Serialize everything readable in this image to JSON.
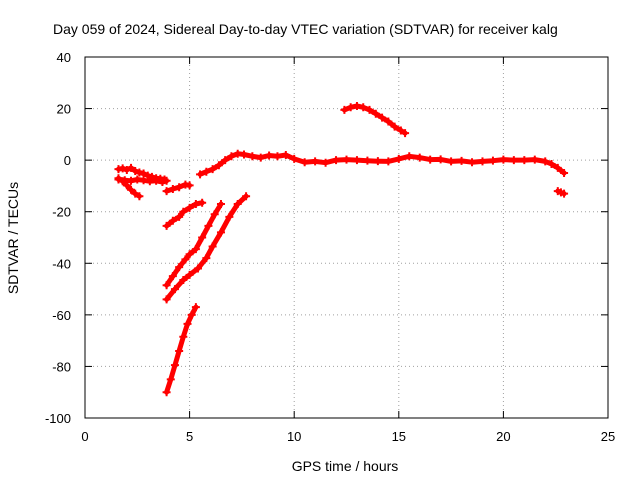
{
  "chart_data": {
    "type": "scatter",
    "title": "Day 059 of 2024, Sidereal Day-to-day VTEC variation (SDTVAR) for receiver kalg",
    "xlabel": "GPS time / hours",
    "ylabel": "SDTVAR / TECUs",
    "xlim": [
      0,
      25
    ],
    "ylim": [
      -100,
      40
    ],
    "x_ticks": [
      0,
      5,
      10,
      15,
      20,
      25
    ],
    "y_ticks": [
      -100,
      -80,
      -60,
      -40,
      -20,
      0,
      20,
      40
    ],
    "grid": true,
    "legend": "none",
    "series_color": "#ff0000",
    "series": [
      {
        "x": [
          1.6,
          1.8,
          2.0,
          2.2,
          2.4,
          2.6,
          2.8,
          3.0,
          3.2,
          3.4,
          3.6,
          3.8
        ],
        "y": [
          -3.5,
          -3.2,
          -3.8,
          -3.0,
          -4.2,
          -4.8,
          -5.2,
          -6.0,
          -6.5,
          -7.0,
          -7.2,
          -7.5
        ]
      },
      {
        "x": [
          1.6,
          1.9,
          2.2,
          2.5,
          2.8,
          3.1,
          3.4,
          3.7,
          3.9
        ],
        "y": [
          -7.5,
          -7.8,
          -8.0,
          -7.5,
          -7.8,
          -8.2,
          -8.0,
          -8.5,
          -8.0
        ]
      },
      {
        "x": [
          1.6,
          1.8,
          2.0,
          2.2,
          2.4,
          2.6
        ],
        "y": [
          -7.0,
          -8.2,
          -9.8,
          -11.5,
          -13.0,
          -14.0
        ]
      },
      {
        "x": [
          3.9,
          4.2,
          4.5,
          4.8,
          5.0
        ],
        "y": [
          -12.0,
          -11.2,
          -10.5,
          -9.5,
          -9.8
        ]
      },
      {
        "x": [
          3.9,
          4.2,
          4.5,
          4.7,
          5.0,
          5.3,
          5.6
        ],
        "y": [
          -25.5,
          -23.5,
          -22.0,
          -20.0,
          -18.5,
          -17.0,
          -16.5
        ]
      },
      {
        "x": [
          3.9,
          4.2,
          4.5,
          4.8,
          5.0,
          5.3,
          5.6,
          5.9,
          6.2,
          6.5
        ],
        "y": [
          -48.5,
          -45.0,
          -41.5,
          -38.5,
          -36.5,
          -34.5,
          -30.0,
          -25.5,
          -21.0,
          -17.0
        ]
      },
      {
        "x": [
          3.9,
          4.3,
          4.7,
          5.0,
          5.4,
          5.8,
          6.1,
          6.5,
          6.9,
          7.3,
          7.7
        ],
        "y": [
          -54.0,
          -50.0,
          -46.5,
          -44.5,
          -42.0,
          -38.0,
          -33.5,
          -28.0,
          -22.0,
          -17.0,
          -14.0
        ]
      },
      {
        "x": [
          3.9,
          4.1,
          4.3,
          4.5,
          4.7,
          4.9,
          5.1,
          5.3
        ],
        "y": [
          -90.0,
          -85.0,
          -79.5,
          -74.0,
          -68.5,
          -63.5,
          -60.0,
          -57.0
        ]
      },
      {
        "x": [
          5.5,
          5.8,
          6.1,
          6.4,
          6.7,
          7.0,
          7.3,
          7.6,
          8.0,
          8.4,
          8.8,
          9.2,
          9.6,
          10.0,
          10.5,
          11.0,
          11.5,
          12.0,
          12.5,
          13.0,
          13.5,
          14.0,
          14.5,
          15.0,
          15.5,
          16.0,
          16.5,
          17.0,
          17.5,
          18.0,
          18.5,
          19.0,
          19.5,
          20.0,
          20.5,
          21.0,
          21.5,
          22.0,
          22.3,
          22.6,
          22.9
        ],
        "y": [
          -5.5,
          -4.5,
          -3.5,
          -2.0,
          0.0,
          1.5,
          2.5,
          2.2,
          1.5,
          1.0,
          1.8,
          1.5,
          2.0,
          0.5,
          -0.8,
          -0.5,
          -1.0,
          0.0,
          0.2,
          0.0,
          -0.2,
          -0.4,
          -0.5,
          0.5,
          1.5,
          1.0,
          0.2,
          0.3,
          -0.5,
          -0.3,
          -0.8,
          -0.5,
          -0.2,
          0.2,
          0.0,
          0.0,
          0.2,
          -0.5,
          -1.5,
          -3.0,
          -5.0
        ]
      },
      {
        "x": [
          12.4,
          12.7,
          13.0,
          13.3,
          13.6,
          13.9,
          14.2,
          14.5,
          14.8,
          15.1,
          15.3
        ],
        "y": [
          19.5,
          20.5,
          21.0,
          20.5,
          19.5,
          18.0,
          16.5,
          15.0,
          13.0,
          11.5,
          10.5
        ]
      },
      {
        "x": [
          22.6,
          22.75,
          22.9
        ],
        "y": [
          -12.0,
          -12.5,
          -13.0
        ]
      }
    ]
  }
}
